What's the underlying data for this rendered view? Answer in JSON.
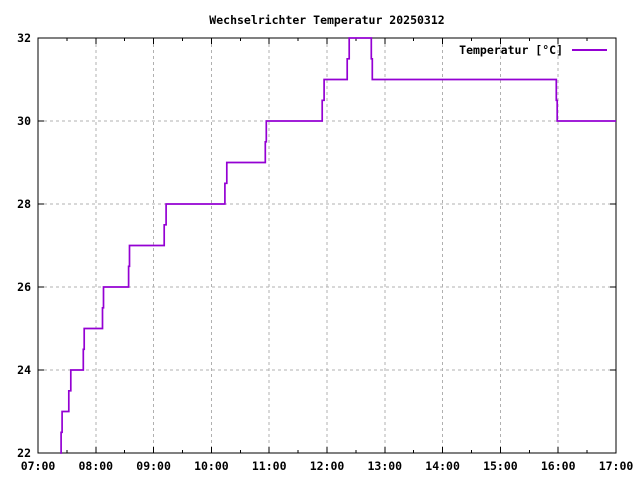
{
  "chart_data": {
    "type": "line",
    "style": "steps",
    "title": "Wechselrichter Temperatur 20250312",
    "legend": {
      "label": "Temperatur [°C]",
      "position": "top-right-inside"
    },
    "xlabel": "",
    "ylabel": "",
    "xlim_hours": [
      7,
      17
    ],
    "ylim": [
      22,
      32
    ],
    "x_tick_labels": [
      "07:00",
      "08:00",
      "09:00",
      "10:00",
      "11:00",
      "12:00",
      "13:00",
      "14:00",
      "15:00",
      "16:00",
      "17:00"
    ],
    "y_tick_labels": [
      "22",
      "24",
      "26",
      "28",
      "30",
      "32"
    ],
    "x_minor_tick_every_hours": 0.5,
    "grid": {
      "shown": true,
      "style": "dashed",
      "color": "#b0b0b0"
    },
    "axis_color": "#000000",
    "background_color": "#ffffff",
    "series": [
      {
        "name": "Temperatur [°C]",
        "unit": "°C",
        "color": "#9400d3",
        "points_time_value": [
          [
            "07:23",
            22.0
          ],
          [
            "07:24",
            22.5
          ],
          [
            "07:25",
            23.0
          ],
          [
            "07:32",
            23.5
          ],
          [
            "07:34",
            24.0
          ],
          [
            "07:47",
            24.5
          ],
          [
            "07:48",
            25.0
          ],
          [
            "08:07",
            25.5
          ],
          [
            "08:08",
            26.0
          ],
          [
            "08:34",
            26.5
          ],
          [
            "08:35",
            27.0
          ],
          [
            "09:11",
            27.5
          ],
          [
            "09:13",
            28.0
          ],
          [
            "10:14",
            28.5
          ],
          [
            "10:16",
            29.0
          ],
          [
            "10:56",
            29.5
          ],
          [
            "10:57",
            30.0
          ],
          [
            "11:55",
            30.5
          ],
          [
            "11:57",
            31.0
          ],
          [
            "12:21",
            31.5
          ],
          [
            "12:23",
            32.0
          ],
          [
            "12:46",
            31.5
          ],
          [
            "12:47",
            31.0
          ],
          [
            "15:58",
            30.5
          ],
          [
            "15:59",
            30.0
          ],
          [
            "17:00",
            30.0
          ]
        ]
      }
    ]
  }
}
